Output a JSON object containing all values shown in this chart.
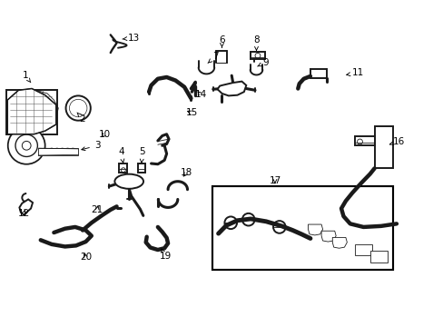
{
  "background_color": "#ffffff",
  "line_color": "#1a1a1a",
  "figsize": [
    4.89,
    3.6
  ],
  "dpi": 100,
  "label_fontsize": 7.5,
  "lw_thin": 0.6,
  "lw_med": 1.4,
  "lw_thick": 2.2,
  "lw_xthick": 3.2
}
